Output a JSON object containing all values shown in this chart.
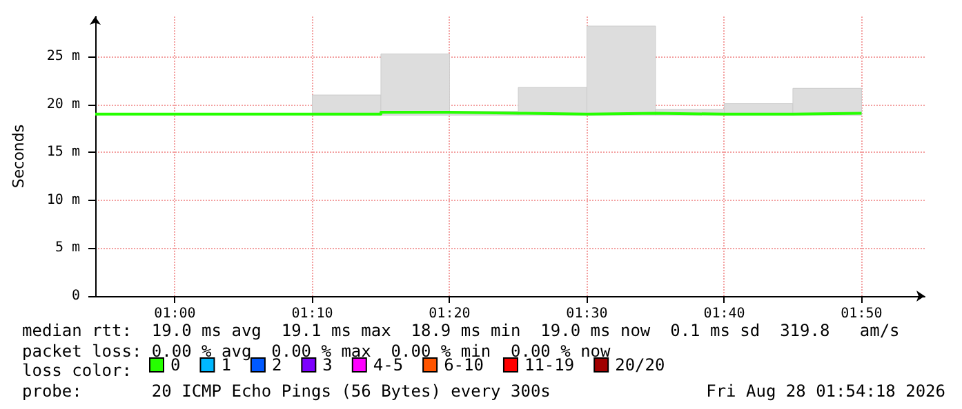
{
  "chart_data": {
    "type": "step",
    "ylabel": "Seconds",
    "x": [
      0.9033,
      1.0,
      1.0833,
      1.1667,
      1.25,
      1.3333,
      1.4167,
      1.5,
      1.5833,
      1.6667,
      1.75,
      1.8333
    ],
    "xlim": [
      0.9033,
      1.91
    ],
    "xticks": [
      {
        "value": 1.0,
        "label": "01:00"
      },
      {
        "value": 1.1667,
        "label": "01:10"
      },
      {
        "value": 1.3333,
        "label": "01:20"
      },
      {
        "value": 1.5,
        "label": "01:30"
      },
      {
        "value": 1.6667,
        "label": "01:40"
      },
      {
        "value": 1.8333,
        "label": "01:50"
      }
    ],
    "ylim": [
      0,
      29.2
    ],
    "yticks": [
      0,
      {
        "value": 5,
        "label": "5 m"
      },
      {
        "value": 10,
        "label": "10 m"
      },
      {
        "value": 15,
        "label": "15 m"
      },
      {
        "value": 20,
        "label": "20 m"
      },
      {
        "value": 25,
        "label": "25 m"
      }
    ],
    "series": [
      {
        "name": "0",
        "color": "#26ff00",
        "values": [
          19.0,
          19.0,
          19.0,
          19.0,
          19.2,
          19.1,
          19.0,
          19.1,
          19.0,
          19.0,
          19.1,
          19.1
        ],
        "lower": [
          null,
          null,
          null,
          18.9,
          18.9,
          18.9,
          18.9,
          18.9,
          18.9,
          18.9,
          18.9,
          18.9
        ],
        "upper": [
          null,
          null,
          null,
          21.0,
          25.3,
          19.3,
          21.8,
          28.2,
          19.5,
          20.1,
          21.7,
          21.7
        ]
      },
      {
        "name": "1",
        "color": "#00b8ff",
        "values": [
          null,
          null,
          null,
          null,
          null,
          null,
          null,
          null,
          null,
          null,
          null,
          null
        ]
      },
      {
        "name": "2",
        "color": "#0059ff",
        "values": [
          null,
          null,
          null,
          null,
          null,
          null,
          null,
          null,
          null,
          null,
          null,
          null
        ]
      },
      {
        "name": "3",
        "color": "#7e00ff",
        "values": [
          null,
          null,
          null,
          null,
          null,
          null,
          null,
          null,
          null,
          null,
          null,
          null
        ]
      },
      {
        "name": "4-5",
        "color": "#ff00ff",
        "values": [
          null,
          null,
          null,
          null,
          null,
          null,
          null,
          null,
          null,
          null,
          null,
          null
        ]
      },
      {
        "name": "6-10",
        "color": "#ff5500",
        "values": [
          null,
          null,
          null,
          null,
          null,
          null,
          null,
          null,
          null,
          null,
          null,
          null
        ]
      },
      {
        "name": "11-19",
        "color": "#ff0000",
        "values": [
          null,
          null,
          null,
          null,
          null,
          null,
          null,
          null,
          null,
          null,
          null,
          null
        ]
      },
      {
        "name": "20/20",
        "color": "#a10000",
        "values": [
          null,
          null,
          null,
          null,
          null,
          null,
          null,
          null,
          null,
          null,
          null,
          null
        ]
      }
    ],
    "grid": true,
    "legend": "bottom",
    "marker": "none",
    "line_style": "solid",
    "annotations": [
      "median rtt:  19.0 ms avg  19.1 ms max  18.9 ms min  19.0 ms now  0.1 ms sd  319.8   am/s",
      "packet loss: 0.00 % avg  0.00 % max  0.00 % min  0.00 % now",
      "loss color:",
      "probe:       20 ICMP Echo Pings (56 Bytes) every 300s",
      "Fri Aug 28 01:54:18 2026"
    ]
  }
}
